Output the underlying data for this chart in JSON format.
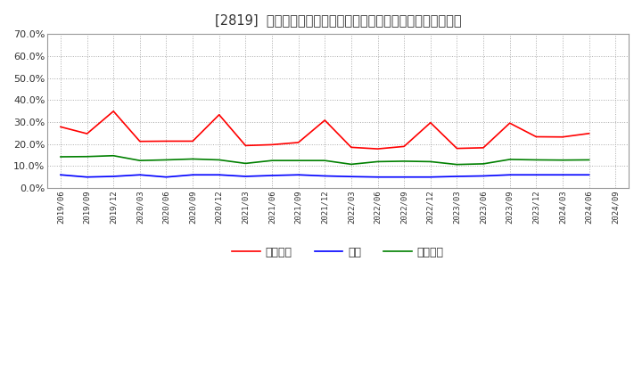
{
  "title": "[2819]  売上債権、在庫、買入債務の総資産に対する比率の推移",
  "x_labels": [
    "2019/06",
    "2019/09",
    "2019/12",
    "2020/03",
    "2020/06",
    "2020/09",
    "2020/12",
    "2021/03",
    "2021/06",
    "2021/09",
    "2021/12",
    "2022/03",
    "2022/06",
    "2022/09",
    "2022/12",
    "2023/03",
    "2023/06",
    "2023/09",
    "2023/12",
    "2024/03",
    "2024/06",
    "2024/09"
  ],
  "urikake": [
    0.278,
    0.247,
    0.349,
    0.212,
    0.213,
    0.213,
    0.333,
    0.193,
    0.197,
    0.207,
    0.308,
    0.185,
    0.178,
    0.189,
    0.297,
    0.18,
    0.183,
    0.295,
    0.233,
    0.232,
    0.248,
    null
  ],
  "zaiko": [
    0.06,
    0.05,
    0.053,
    0.06,
    0.05,
    0.06,
    0.06,
    0.053,
    0.057,
    0.06,
    0.055,
    0.052,
    0.05,
    0.05,
    0.05,
    0.053,
    0.055,
    0.06,
    0.06,
    0.06,
    0.06,
    null
  ],
  "kaiire": [
    0.142,
    0.143,
    0.147,
    0.125,
    0.128,
    0.132,
    0.128,
    0.112,
    0.125,
    0.125,
    0.125,
    0.108,
    0.12,
    0.122,
    0.12,
    0.107,
    0.11,
    0.13,
    0.128,
    0.127,
    0.128,
    null
  ],
  "urikake_color": "#ff0000",
  "zaiko_color": "#0000ff",
  "kaiire_color": "#008000",
  "legend_urikake": "売上債権",
  "legend_zaiko": "在庫",
  "legend_kaiire": "買入債務",
  "ylim_min": 0.0,
  "ylim_max": 0.7,
  "yticks": [
    0.0,
    0.1,
    0.2,
    0.3,
    0.4,
    0.5,
    0.6,
    0.7
  ],
  "bg_color": "#ffffff",
  "plot_bg_color": "#ffffff",
  "grid_color": "#aaaaaa",
  "title_color": "#333333",
  "title_fontsize": 10.5
}
